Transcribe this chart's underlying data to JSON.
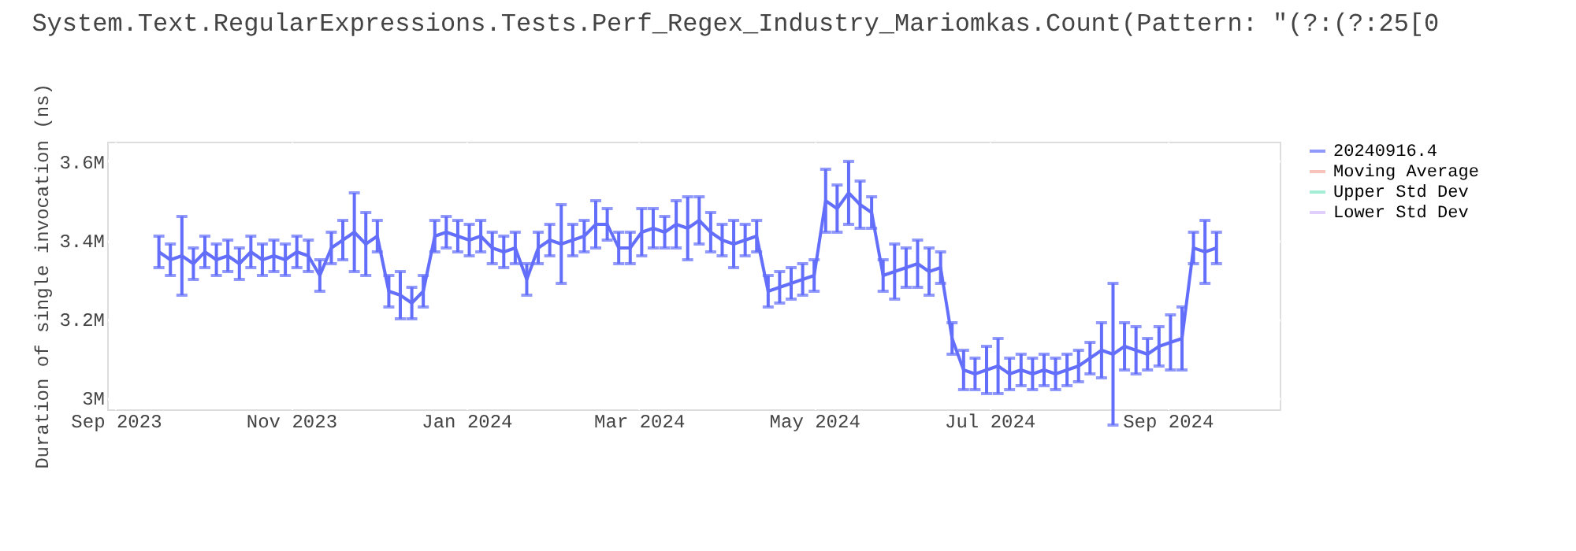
{
  "chart_data": {
    "type": "line",
    "title": "System.Text.RegularExpressions.Tests.Perf_Regex_Industry_Mariomkas.Count(Pattern: \"(?:(?:25[0",
    "ylabel": "Duration of single invocation (ns)",
    "x": [
      "2023-09-16",
      "2023-09-20",
      "2023-09-24",
      "2023-09-28",
      "2023-10-02",
      "2023-10-06",
      "2023-10-10",
      "2023-10-14",
      "2023-10-18",
      "2023-10-22",
      "2023-10-26",
      "2023-10-30",
      "2023-11-03",
      "2023-11-07",
      "2023-11-11",
      "2023-11-15",
      "2023-11-19",
      "2023-11-23",
      "2023-11-27",
      "2023-12-01",
      "2023-12-05",
      "2023-12-09",
      "2023-12-13",
      "2023-12-17",
      "2023-12-21",
      "2023-12-25",
      "2023-12-29",
      "2024-01-02",
      "2024-01-06",
      "2024-01-10",
      "2024-01-14",
      "2024-01-18",
      "2024-01-22",
      "2024-01-26",
      "2024-01-30",
      "2024-02-03",
      "2024-02-07",
      "2024-02-11",
      "2024-02-15",
      "2024-02-19",
      "2024-02-23",
      "2024-02-27",
      "2024-03-02",
      "2024-03-06",
      "2024-03-10",
      "2024-03-14",
      "2024-03-18",
      "2024-03-22",
      "2024-03-26",
      "2024-03-30",
      "2024-04-03",
      "2024-04-07",
      "2024-04-11",
      "2024-04-15",
      "2024-04-19",
      "2024-04-23",
      "2024-04-27",
      "2024-05-01",
      "2024-05-05",
      "2024-05-09",
      "2024-05-13",
      "2024-05-17",
      "2024-05-21",
      "2024-05-25",
      "2024-05-29",
      "2024-06-02",
      "2024-06-06",
      "2024-06-10",
      "2024-06-14",
      "2024-06-18",
      "2024-06-22",
      "2024-06-26",
      "2024-06-30",
      "2024-07-04",
      "2024-07-08",
      "2024-07-12",
      "2024-07-16",
      "2024-07-20",
      "2024-07-24",
      "2024-07-28",
      "2024-08-01",
      "2024-08-05",
      "2024-08-09",
      "2024-08-13",
      "2024-08-17",
      "2024-08-21",
      "2024-08-25",
      "2024-08-29",
      "2024-09-02",
      "2024-09-06",
      "2024-09-10",
      "2024-09-14",
      "2024-09-18"
    ],
    "series": [
      {
        "name": "20240916.4",
        "color": "#636efa",
        "values": [
          3370000,
          3350000,
          3360000,
          3340000,
          3370000,
          3350000,
          3360000,
          3340000,
          3370000,
          3350000,
          3360000,
          3350000,
          3370000,
          3360000,
          3310000,
          3380000,
          3400000,
          3420000,
          3390000,
          3410000,
          3270000,
          3260000,
          3240000,
          3270000,
          3410000,
          3420000,
          3410000,
          3400000,
          3410000,
          3380000,
          3370000,
          3380000,
          3300000,
          3380000,
          3400000,
          3390000,
          3400000,
          3410000,
          3440000,
          3440000,
          3380000,
          3380000,
          3420000,
          3430000,
          3420000,
          3440000,
          3430000,
          3450000,
          3420000,
          3400000,
          3390000,
          3400000,
          3410000,
          3270000,
          3280000,
          3290000,
          3300000,
          3310000,
          3500000,
          3480000,
          3520000,
          3490000,
          3470000,
          3310000,
          3320000,
          3330000,
          3340000,
          3320000,
          3330000,
          3150000,
          3070000,
          3060000,
          3070000,
          3080000,
          3060000,
          3070000,
          3060000,
          3070000,
          3060000,
          3070000,
          3080000,
          3100000,
          3120000,
          3110000,
          3130000,
          3120000,
          3110000,
          3130000,
          3140000,
          3150000,
          3380000,
          3370000,
          3380000
        ],
        "errors": [
          40000,
          40000,
          100000,
          40000,
          40000,
          40000,
          40000,
          40000,
          40000,
          40000,
          40000,
          40000,
          40000,
          40000,
          40000,
          40000,
          50000,
          100000,
          80000,
          40000,
          40000,
          60000,
          40000,
          40000,
          40000,
          40000,
          40000,
          40000,
          40000,
          40000,
          40000,
          40000,
          40000,
          40000,
          40000,
          100000,
          40000,
          40000,
          60000,
          40000,
          40000,
          40000,
          60000,
          50000,
          40000,
          60000,
          80000,
          60000,
          50000,
          40000,
          60000,
          40000,
          40000,
          40000,
          40000,
          40000,
          40000,
          40000,
          80000,
          60000,
          80000,
          60000,
          40000,
          40000,
          70000,
          50000,
          60000,
          60000,
          40000,
          40000,
          50000,
          40000,
          60000,
          70000,
          40000,
          40000,
          40000,
          40000,
          40000,
          40000,
          40000,
          40000,
          70000,
          180000,
          60000,
          60000,
          40000,
          50000,
          70000,
          80000,
          40000,
          80000,
          40000
        ]
      },
      {
        "name": "Moving Average",
        "color": "#f6aa9d",
        "values": [
          null,
          null,
          null,
          null,
          null,
          null,
          null,
          null,
          null,
          null,
          null,
          null,
          null,
          null,
          null,
          null,
          null,
          null,
          null,
          null,
          null,
          null,
          null,
          null,
          null,
          null,
          null,
          null,
          null,
          null,
          null,
          null,
          null,
          null,
          null,
          null,
          null,
          null,
          null,
          null,
          null,
          null,
          null,
          null,
          null,
          null,
          null,
          null,
          null,
          null,
          null,
          null,
          null,
          null,
          null,
          null,
          null,
          null,
          null,
          null,
          null,
          null,
          null,
          null,
          null,
          null,
          null,
          null,
          null,
          null,
          null,
          null,
          null,
          null,
          null,
          null,
          null,
          null,
          null,
          null,
          null,
          null,
          null,
          null,
          null,
          null,
          null,
          null,
          null,
          null,
          null,
          null,
          null
        ]
      },
      {
        "name": "Upper Std Dev",
        "color": "#7ee8c4",
        "values": [
          null,
          null,
          null,
          null,
          null,
          null,
          null,
          null,
          null,
          null,
          null,
          null,
          null,
          null,
          null,
          null,
          null,
          null,
          null,
          null,
          null,
          null,
          null,
          null,
          null,
          null,
          null,
          null,
          null,
          null,
          null,
          null,
          null,
          null,
          null,
          null,
          null,
          null,
          null,
          null,
          null,
          null,
          null,
          null,
          null,
          null,
          null,
          null,
          null,
          null,
          null,
          null,
          null,
          null,
          null,
          null,
          null,
          null,
          null,
          null,
          null,
          null,
          null,
          null,
          null,
          null,
          null,
          null,
          null,
          null,
          null,
          null,
          null,
          null,
          null,
          null,
          null,
          null,
          null,
          null,
          null,
          null,
          null,
          null,
          null,
          null,
          null,
          null,
          null,
          null,
          null,
          null,
          null
        ]
      },
      {
        "name": "Lower Std Dev",
        "color": "#d4bbfc",
        "values": [
          null,
          null,
          null,
          null,
          null,
          null,
          null,
          null,
          null,
          null,
          null,
          null,
          null,
          null,
          null,
          null,
          null,
          null,
          null,
          null,
          null,
          null,
          null,
          null,
          null,
          null,
          null,
          null,
          null,
          null,
          null,
          null,
          null,
          null,
          null,
          null,
          null,
          null,
          null,
          null,
          null,
          null,
          null,
          null,
          null,
          null,
          null,
          null,
          null,
          null,
          null,
          null,
          null,
          null,
          null,
          null,
          null,
          null,
          null,
          null,
          null,
          null,
          null,
          null,
          null,
          null,
          null,
          null,
          null,
          null,
          null,
          null,
          null,
          null,
          null,
          null,
          null,
          null,
          null,
          null,
          null,
          null,
          null,
          null,
          null,
          null,
          null,
          null,
          null,
          null,
          null,
          null,
          null
        ]
      }
    ],
    "xlim": [
      "2023-08-29",
      "2024-10-10"
    ],
    "xticks": [
      {
        "value": "2023-09-01",
        "label": "Sep 2023"
      },
      {
        "value": "2023-11-01",
        "label": "Nov 2023"
      },
      {
        "value": "2024-01-01",
        "label": "Jan 2024"
      },
      {
        "value": "2024-03-01",
        "label": "Mar 2024"
      },
      {
        "value": "2024-05-01",
        "label": "May 2024"
      },
      {
        "value": "2024-07-01",
        "label": "Jul 2024"
      },
      {
        "value": "2024-09-01",
        "label": "Sep 2024"
      }
    ],
    "ylim": [
      2970000,
      3650000
    ],
    "yticks": [
      {
        "value": 3000000,
        "label": "3M"
      },
      {
        "value": 3200000,
        "label": "3.2M"
      },
      {
        "value": 3400000,
        "label": "3.4M"
      },
      {
        "value": 3600000,
        "label": "3.6M"
      }
    ],
    "grid": true,
    "legend": "right",
    "line_style": "solid",
    "marker": "none"
  }
}
